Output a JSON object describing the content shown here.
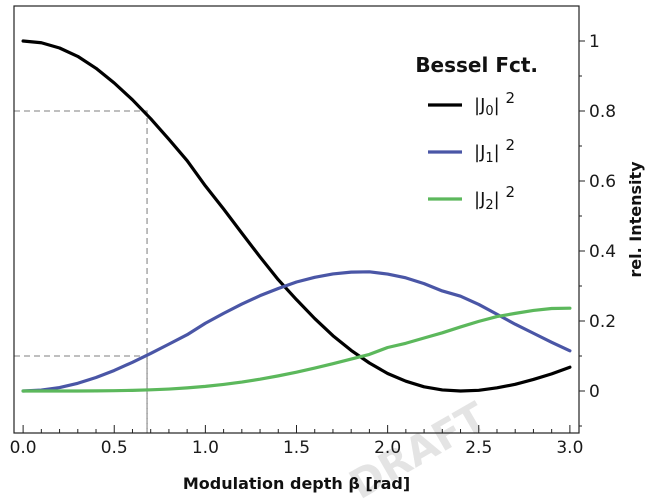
{
  "chart_data": {
    "type": "line",
    "title": "",
    "xlabel": "Modulation depth β [rad]",
    "ylabel": "rel. Intensity",
    "xlim": [
      -0.05,
      3.05
    ],
    "ylim": [
      -0.12,
      1.1
    ],
    "x_ticks": [
      0.0,
      0.5,
      1.0,
      1.5,
      2.0,
      2.5,
      3.0
    ],
    "x_tick_labels": [
      "0.0",
      "0.5",
      "1.0",
      "1.5",
      "2.0",
      "2.5",
      "3.0"
    ],
    "y_ticks": [
      0,
      0.2,
      0.4,
      0.6,
      0.8,
      1
    ],
    "y_tick_labels": [
      "0",
      "0.2",
      "0.4",
      "0.6",
      "0.8",
      "1"
    ],
    "y_axis_side": "right",
    "legend": {
      "title": "Bessel Fct.",
      "placement": "top-right"
    },
    "x": [
      0.0,
      0.1,
      0.2,
      0.3,
      0.4,
      0.5,
      0.6,
      0.7,
      0.8,
      0.9,
      1.0,
      1.1,
      1.2,
      1.3,
      1.4,
      1.5,
      1.6,
      1.7,
      1.8,
      1.9,
      2.0,
      2.1,
      2.2,
      2.3,
      2.4,
      2.5,
      2.6,
      2.7,
      2.8,
      2.9,
      3.0
    ],
    "series": [
      {
        "name": "|J0|²",
        "label_base": "|J",
        "label_sub": "0",
        "label_tail": "|",
        "label_sup": "2",
        "color": "#000000",
        "values": [
          1.0,
          0.995,
          0.98,
          0.956,
          0.922,
          0.88,
          0.832,
          0.778,
          0.719,
          0.658,
          0.586,
          0.52,
          0.451,
          0.383,
          0.318,
          0.261,
          0.207,
          0.158,
          0.116,
          0.08,
          0.05,
          0.028,
          0.012,
          0.003,
          0.0,
          0.002,
          0.009,
          0.019,
          0.033,
          0.049,
          0.068
        ]
      },
      {
        "name": "|J1|²",
        "label_base": "|J",
        "label_sub": "1",
        "label_tail": "|",
        "label_sup": "2",
        "color": "#4a56a6",
        "values": [
          0.0,
          0.0025,
          0.0099,
          0.0221,
          0.0385,
          0.0587,
          0.082,
          0.1072,
          0.1339,
          0.1608,
          0.1936,
          0.2218,
          0.2483,
          0.2724,
          0.293,
          0.3114,
          0.3248,
          0.3344,
          0.3397,
          0.3405,
          0.3342,
          0.3233,
          0.3069,
          0.2858,
          0.271,
          0.2473,
          0.2193,
          0.1908,
          0.165,
          0.1392,
          0.1148
        ]
      },
      {
        "name": "|J2|²",
        "label_base": "|J",
        "label_sub": "2",
        "label_tail": "|",
        "label_sup": "2",
        "color": "#5cb85c",
        "values": [
          0.0,
          0.0,
          0.0,
          0.0001,
          0.0004,
          0.0009,
          0.0019,
          0.0034,
          0.0056,
          0.0089,
          0.0132,
          0.0188,
          0.0255,
          0.0337,
          0.0432,
          0.0537,
          0.0654,
          0.078,
          0.0912,
          0.1046,
          0.1243,
          0.1364,
          0.1515,
          0.1662,
          0.183,
          0.1989,
          0.2127,
          0.2218,
          0.2301,
          0.2357,
          0.2366
        ]
      }
    ],
    "reference_lines": [
      {
        "x": 0.68,
        "y": 0.8
      },
      {
        "x": 0.68,
        "y": 0.1
      }
    ]
  },
  "colors": {
    "axis": "#222222",
    "reference": "#999999"
  },
  "watermark_text": "DRAFT"
}
